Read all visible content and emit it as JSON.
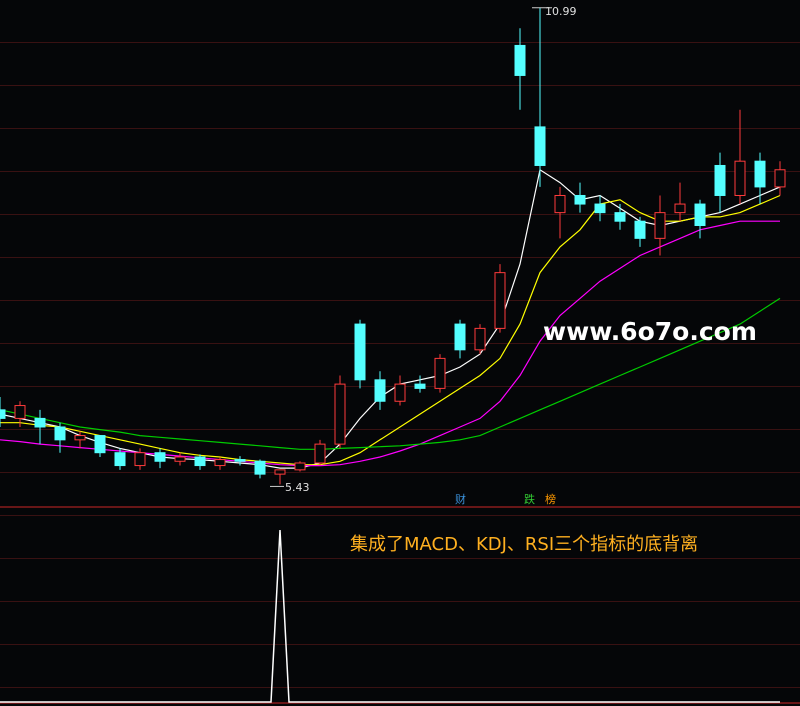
{
  "chart_data": {
    "type": "candlestick",
    "ylim": [
      5.19,
      11.08
    ],
    "up_color": "#ff3b3b",
    "down_color": "#54ffff",
    "open": [
      6.3,
      6.2,
      6.2,
      6.1,
      5.95,
      6.0,
      5.8,
      5.65,
      5.8,
      5.7,
      5.75,
      5.65,
      5.72,
      5.7,
      5.55,
      5.6,
      5.68,
      5.9,
      7.3,
      6.65,
      6.4,
      6.6,
      6.55,
      7.3,
      7.0,
      7.25,
      10.55,
      9.6,
      8.6,
      8.8,
      8.7,
      8.6,
      8.5,
      8.3,
      8.6,
      8.7,
      9.15,
      8.8,
      9.2,
      8.9
    ],
    "high": [
      6.45,
      6.4,
      6.3,
      6.15,
      6.05,
      6.0,
      5.85,
      5.85,
      5.85,
      5.8,
      5.78,
      5.75,
      5.76,
      5.72,
      5.6,
      5.7,
      5.95,
      6.7,
      7.35,
      6.75,
      6.7,
      6.7,
      6.95,
      7.35,
      7.3,
      8.0,
      10.75,
      10.99,
      8.9,
      8.95,
      8.8,
      8.7,
      8.55,
      8.8,
      8.95,
      8.75,
      9.3,
      9.8,
      9.3,
      9.2
    ],
    "low": [
      6.1,
      6.1,
      5.9,
      5.8,
      5.85,
      5.75,
      5.6,
      5.6,
      5.62,
      5.65,
      5.6,
      5.6,
      5.65,
      5.5,
      5.43,
      5.58,
      5.65,
      5.85,
      6.55,
      6.3,
      6.35,
      6.5,
      6.5,
      6.9,
      6.95,
      7.2,
      9.8,
      8.9,
      8.3,
      8.6,
      8.5,
      8.4,
      8.2,
      8.1,
      8.5,
      8.3,
      8.6,
      8.7,
      8.7,
      8.8
    ],
    "close": [
      6.2,
      6.35,
      6.1,
      5.95,
      6.0,
      5.8,
      5.65,
      5.8,
      5.7,
      5.75,
      5.65,
      5.72,
      5.7,
      5.55,
      5.6,
      5.68,
      5.9,
      6.6,
      6.65,
      6.4,
      6.6,
      6.55,
      6.9,
      7.0,
      7.25,
      7.9,
      10.2,
      9.15,
      8.8,
      8.7,
      8.6,
      8.5,
      8.3,
      8.6,
      8.7,
      8.45,
      8.8,
      9.2,
      8.9,
      9.1
    ],
    "series": [
      {
        "color": "#ffffff",
        "values": [
          6.25,
          6.2,
          6.15,
          6.1,
          6.0,
          5.92,
          5.85,
          5.8,
          5.75,
          5.73,
          5.72,
          5.7,
          5.68,
          5.66,
          5.62,
          5.62,
          5.68,
          5.9,
          6.2,
          6.45,
          6.6,
          6.65,
          6.7,
          6.8,
          6.95,
          7.3,
          8.0,
          9.1,
          8.95,
          8.75,
          8.8,
          8.65,
          8.5,
          8.45,
          8.5,
          8.55,
          8.6,
          8.7,
          8.8,
          8.9
        ]
      },
      {
        "color": "#ffff00",
        "values": [
          6.15,
          6.15,
          6.12,
          6.1,
          6.05,
          6.0,
          5.95,
          5.9,
          5.85,
          5.8,
          5.77,
          5.75,
          5.72,
          5.7,
          5.68,
          5.66,
          5.66,
          5.7,
          5.8,
          5.95,
          6.1,
          6.25,
          6.4,
          6.55,
          6.7,
          6.9,
          7.3,
          7.9,
          8.2,
          8.4,
          8.7,
          8.75,
          8.6,
          8.5,
          8.5,
          8.55,
          8.55,
          8.6,
          8.7,
          8.8
        ]
      },
      {
        "color": "#ff00ff",
        "values": [
          5.95,
          5.93,
          5.9,
          5.88,
          5.86,
          5.84,
          5.82,
          5.8,
          5.78,
          5.76,
          5.74,
          5.72,
          5.7,
          5.68,
          5.66,
          5.65,
          5.65,
          5.66,
          5.7,
          5.75,
          5.82,
          5.9,
          6.0,
          6.1,
          6.2,
          6.4,
          6.7,
          7.1,
          7.4,
          7.6,
          7.8,
          7.95,
          8.1,
          8.2,
          8.3,
          8.4,
          8.45,
          8.5,
          8.5,
          8.5
        ]
      },
      {
        "color": "#00cc00",
        "values": [
          6.3,
          6.25,
          6.2,
          6.15,
          6.1,
          6.07,
          6.04,
          6.0,
          5.98,
          5.96,
          5.94,
          5.92,
          5.9,
          5.88,
          5.86,
          5.84,
          5.84,
          5.85,
          5.86,
          5.87,
          5.88,
          5.9,
          5.92,
          5.95,
          6.0,
          6.1,
          6.2,
          6.3,
          6.4,
          6.5,
          6.6,
          6.7,
          6.8,
          6.9,
          7.0,
          7.1,
          7.2,
          7.3,
          7.45,
          7.6
        ]
      }
    ],
    "max_label": "10.99",
    "min_label": "5.43",
    "badges": [
      {
        "text": "财",
        "color": "#3a8fd8"
      },
      {
        "text": "跌",
        "color": "#33cc33"
      },
      {
        "text": "榜",
        "color": "#ff9900"
      }
    ],
    "watermark": "www.6o7o.com",
    "indicator": {
      "ylim": [
        0,
        1
      ],
      "color": "#ffffff",
      "values": [
        0,
        0,
        0,
        0,
        0,
        0,
        0,
        0,
        0,
        0,
        0,
        0,
        0,
        0,
        1,
        0,
        0,
        0,
        0,
        0,
        0,
        0,
        0,
        0,
        0,
        0,
        0,
        0,
        0,
        0,
        0,
        0,
        0,
        0,
        0,
        0,
        0,
        0,
        0,
        0
      ],
      "annotation": "集成了MACD、KDJ、RSI三个指标的底背离"
    }
  }
}
